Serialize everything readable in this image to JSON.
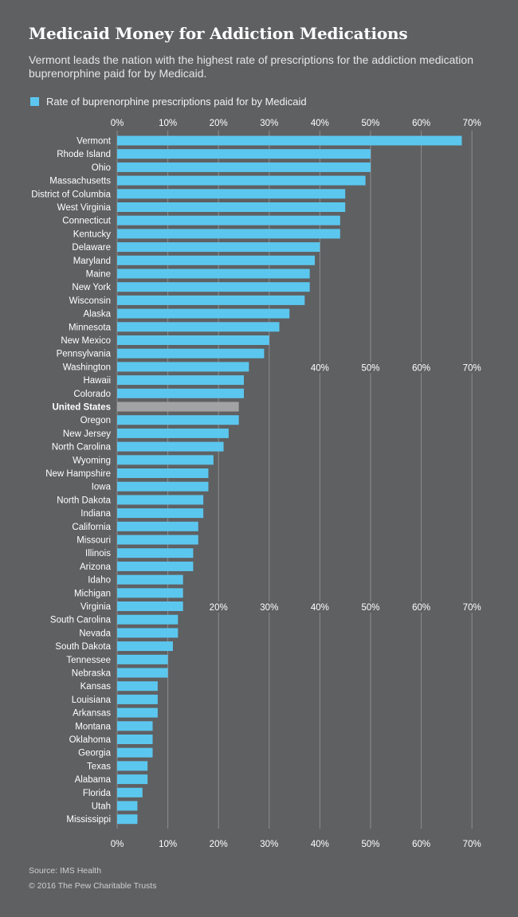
{
  "title": "Medicaid Money for Addiction Medications",
  "subtitle": "Vermont leads the nation with the highest rate of prescriptions for the addiction medication buprenorphine paid for by Medicaid.",
  "legend_label": "Rate of buprenorphine prescriptions paid for by Medicaid",
  "source": "Source: IMS Health",
  "copyright": "© 2016 The Pew Charitable Trusts",
  "colors": {
    "bar": "#5bc7ef",
    "highlight_bar": "#a2a3a5",
    "background": "#5f6062",
    "gridline": "#8d8e90"
  },
  "chart_data": {
    "type": "bar",
    "orientation": "horizontal",
    "xlim": [
      0,
      70
    ],
    "x_ticks": [
      "0%",
      "10%",
      "20%",
      "30%",
      "40%",
      "50%",
      "60%",
      "70%"
    ],
    "highlight": "United States",
    "categories": [
      "Vermont",
      "Rhode Island",
      "Ohio",
      "Massachusetts",
      "District of Columbia",
      "West Virginia",
      "Connecticut",
      "Kentucky",
      "Delaware",
      "Maryland",
      "Maine",
      "New York",
      "Wisconsin",
      "Alaska",
      "Minnesota",
      "New Mexico",
      "Pennsylvania",
      "Washington",
      "Hawaii",
      "Colorado",
      "United States",
      "Oregon",
      "New Jersey",
      "North Carolina",
      "Wyoming",
      "New Hampshire",
      "Iowa",
      "North Dakota",
      "Indiana",
      "California",
      "Missouri",
      "Illinois",
      "Arizona",
      "Idaho",
      "Michigan",
      "Virginia",
      "South Carolina",
      "Nevada",
      "South Dakota",
      "Tennessee",
      "Nebraska",
      "Kansas",
      "Louisiana",
      "Arkansas",
      "Montana",
      "Oklahoma",
      "Georgia",
      "Texas",
      "Alabama",
      "Florida",
      "Utah",
      "Mississippi"
    ],
    "values": [
      68,
      50,
      50,
      49,
      45,
      45,
      44,
      44,
      40,
      39,
      38,
      38,
      37,
      34,
      32,
      30,
      29,
      26,
      25,
      25,
      24,
      24,
      22,
      21,
      19,
      18,
      18,
      17,
      17,
      16,
      16,
      15,
      15,
      13,
      13,
      13,
      12,
      12,
      11,
      10,
      10,
      8,
      8,
      8,
      7,
      7,
      7,
      6,
      6,
      5,
      4,
      4
    ],
    "mid_tick_rows": [
      {
        "after_category": "Pennsylvania",
        "from_tick": 4
      },
      {
        "after_category": "Michigan",
        "from_tick": 2
      }
    ]
  }
}
